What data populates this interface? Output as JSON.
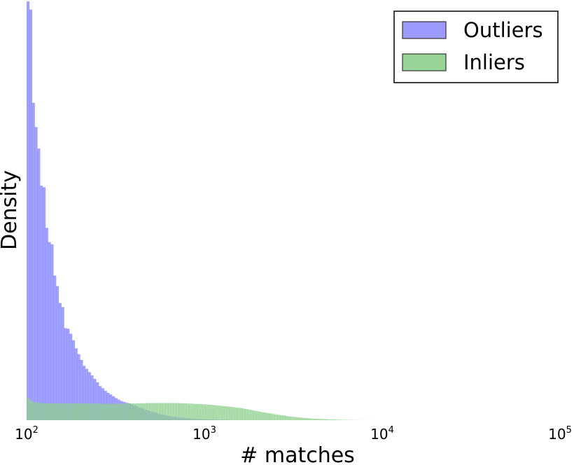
{
  "chart_data": {
    "type": "histogram",
    "xlabel": "# matches",
    "ylabel": "Density",
    "xscale": "log",
    "xlim": [
      100,
      100000
    ],
    "ylim": [
      0,
      1.0
    ],
    "grid": false,
    "legend_position": "top-right",
    "x_ticks": [
      {
        "value": 100,
        "base": "10",
        "exp": "2"
      },
      {
        "value": 1000,
        "base": "10",
        "exp": "3"
      },
      {
        "value": 10000,
        "base": "10",
        "exp": "4"
      },
      {
        "value": 100000,
        "base": "10",
        "exp": "5"
      }
    ],
    "series": [
      {
        "name": "Outliers",
        "color": "#7b7bff",
        "points": [
          [
            100,
            1.0
          ],
          [
            105,
            1.0
          ],
          [
            110,
            0.7
          ],
          [
            115,
            0.7
          ],
          [
            120,
            0.56
          ],
          [
            125,
            0.56
          ],
          [
            130,
            0.45
          ],
          [
            135,
            0.42
          ],
          [
            140,
            0.42
          ],
          [
            145,
            0.32
          ],
          [
            150,
            0.32
          ],
          [
            155,
            0.27
          ],
          [
            160,
            0.27
          ],
          [
            165,
            0.22
          ],
          [
            170,
            0.22
          ],
          [
            180,
            0.2
          ],
          [
            190,
            0.17
          ],
          [
            200,
            0.15
          ],
          [
            210,
            0.13
          ],
          [
            220,
            0.12
          ],
          [
            230,
            0.11
          ],
          [
            240,
            0.1
          ],
          [
            250,
            0.09
          ],
          [
            260,
            0.08
          ],
          [
            270,
            0.075
          ],
          [
            280,
            0.068
          ],
          [
            300,
            0.06
          ],
          [
            320,
            0.052
          ],
          [
            340,
            0.046
          ],
          [
            360,
            0.042
          ],
          [
            380,
            0.04
          ],
          [
            400,
            0.036
          ],
          [
            430,
            0.031
          ],
          [
            460,
            0.026
          ],
          [
            500,
            0.021
          ],
          [
            550,
            0.016
          ],
          [
            600,
            0.012
          ],
          [
            650,
            0.009
          ],
          [
            700,
            0.007
          ],
          [
            800,
            0.005
          ],
          [
            900,
            0.003
          ],
          [
            1000,
            0.002
          ],
          [
            1200,
            0.001
          ],
          [
            1500,
            0
          ]
        ]
      },
      {
        "name": "Inliers",
        "color": "#8ed08e",
        "points": [
          [
            100,
            0.055
          ],
          [
            110,
            0.042
          ],
          [
            130,
            0.04
          ],
          [
            150,
            0.04
          ],
          [
            200,
            0.04
          ],
          [
            300,
            0.039
          ],
          [
            400,
            0.04
          ],
          [
            500,
            0.041
          ],
          [
            600,
            0.041
          ],
          [
            700,
            0.041
          ],
          [
            800,
            0.04
          ],
          [
            900,
            0.039
          ],
          [
            1000,
            0.038
          ],
          [
            1200,
            0.035
          ],
          [
            1400,
            0.032
          ],
          [
            1600,
            0.029
          ],
          [
            1800,
            0.025
          ],
          [
            2000,
            0.021
          ],
          [
            2500,
            0.014
          ],
          [
            3000,
            0.009
          ],
          [
            3500,
            0.006
          ],
          [
            4000,
            0.004
          ],
          [
            5000,
            0.002
          ],
          [
            6000,
            0.0008
          ],
          [
            7000,
            0.0003
          ],
          [
            8000,
            0.0001
          ],
          [
            10000,
            0
          ]
        ]
      }
    ]
  }
}
